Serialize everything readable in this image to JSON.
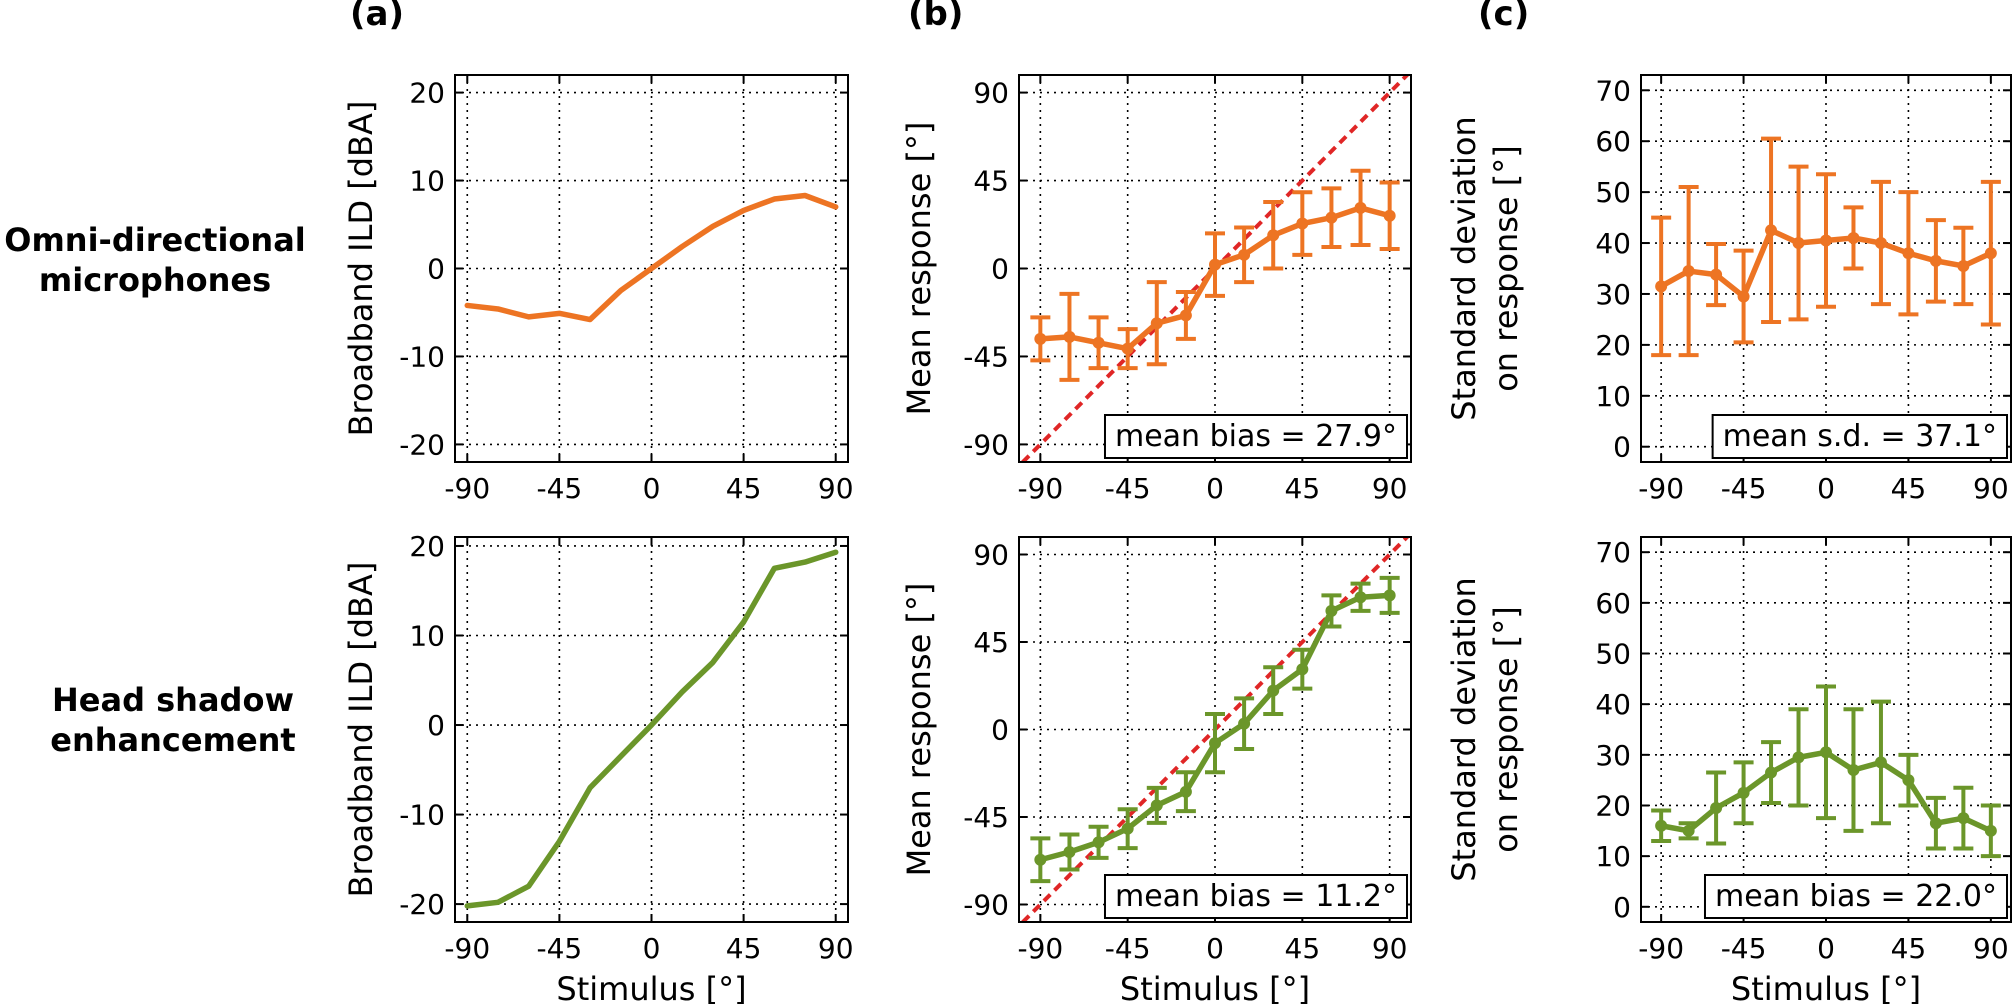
{
  "panel_letters": [
    "(a)",
    "(b)",
    "(c)"
  ],
  "row_labels": [
    [
      "Omni-directional",
      "microphones"
    ],
    [
      "Head shadow",
      "enhancement"
    ]
  ],
  "colors": {
    "orange": "#ed7423",
    "green": "#6b962a",
    "identity": "#e02626"
  },
  "chart_data": [
    {
      "id": "a-top",
      "type": "line",
      "xlabel": "",
      "ylabel": "Broadband ILD [dBA]",
      "xlim": [
        -96,
        96
      ],
      "ylim": [
        -22,
        22
      ],
      "xticks": [
        -90,
        -45,
        0,
        45,
        90
      ],
      "xticklabels": [
        "-90",
        "-45",
        "0",
        "45",
        "90"
      ],
      "yticks": [
        -20,
        -10,
        0,
        10,
        20
      ],
      "yticklabels": [
        "-20",
        "-10",
        "0",
        "10",
        "20"
      ],
      "grid": true,
      "series": [
        {
          "color": "orange",
          "x": [
            -90,
            -75,
            -60,
            -45,
            -30,
            -15,
            0,
            15,
            30,
            45,
            60,
            75,
            90
          ],
          "y": [
            -4.2,
            -4.6,
            -5.5,
            -5.1,
            -5.8,
            -2.5,
            0,
            2.5,
            4.8,
            6.6,
            7.9,
            8.3,
            7.0
          ]
        }
      ]
    },
    {
      "id": "b-top",
      "type": "line",
      "xlabel": "",
      "ylabel": "Mean response [°]",
      "xlim": [
        -101,
        101
      ],
      "ylim": [
        -99,
        99
      ],
      "xticks": [
        -90,
        -45,
        0,
        45,
        90
      ],
      "xticklabels": [
        "-90",
        "-45",
        "0",
        "45",
        "90"
      ],
      "yticks": [
        -90,
        -45,
        0,
        45,
        90
      ],
      "yticklabels": [
        "-90",
        "-45",
        "0",
        "45",
        "90"
      ],
      "grid": true,
      "identity_line": true,
      "annotation": "mean bias = 27.9°",
      "series": [
        {
          "color": "orange",
          "errorbars": true,
          "x": [
            -90,
            -75,
            -60,
            -45,
            -30,
            -15,
            0,
            15,
            30,
            45,
            60,
            75,
            90
          ],
          "y": [
            -36,
            -35,
            -38,
            -41,
            -28,
            -24,
            2,
            7,
            17,
            23,
            26,
            31,
            27
          ],
          "err": [
            11,
            22,
            13,
            10,
            21,
            12,
            16,
            14,
            17,
            16,
            15,
            19,
            17
          ]
        }
      ]
    },
    {
      "id": "c-top",
      "type": "line",
      "xlabel": "",
      "ylabel": "Standard deviation on response [°]",
      "ylabel_lines": [
        "Standard deviation",
        "on response [°]"
      ],
      "xlim": [
        -101,
        101
      ],
      "ylim": [
        -3,
        73
      ],
      "xticks": [
        -90,
        -45,
        0,
        45,
        90
      ],
      "xticklabels": [
        "-90",
        "-45",
        "0",
        "45",
        "90"
      ],
      "yticks": [
        0,
        10,
        20,
        30,
        40,
        50,
        60,
        70
      ],
      "yticklabels": [
        "0",
        "10",
        "20",
        "30",
        "40",
        "50",
        "60",
        "70"
      ],
      "grid": true,
      "annotation": "mean s.d. = 37.1°",
      "series": [
        {
          "color": "orange",
          "errorbars": true,
          "x": [
            -90,
            -75,
            -60,
            -45,
            -30,
            -15,
            0,
            15,
            30,
            45,
            60,
            75,
            90
          ],
          "y": [
            31.5,
            34.5,
            33.8,
            29.5,
            42.5,
            40,
            40.5,
            41,
            40,
            38,
            36.5,
            35.5,
            38
          ],
          "err": [
            13.5,
            16.5,
            6,
            9,
            18,
            15,
            13,
            6,
            12,
            12,
            8,
            7.5,
            14
          ]
        }
      ]
    },
    {
      "id": "a-bottom",
      "type": "line",
      "xlabel": "Stimulus [°]",
      "ylabel": "Broadband ILD [dBA]",
      "xlim": [
        -96,
        96
      ],
      "ylim": [
        -22,
        21
      ],
      "xticks": [
        -90,
        -45,
        0,
        45,
        90
      ],
      "xticklabels": [
        "-90",
        "-45",
        "0",
        "45",
        "90"
      ],
      "yticks": [
        -20,
        -10,
        0,
        10,
        20
      ],
      "yticklabels": [
        "-20",
        "-10",
        "0",
        "10",
        "20"
      ],
      "grid": true,
      "series": [
        {
          "color": "green",
          "x": [
            -90,
            -75,
            -60,
            -45,
            -30,
            -15,
            0,
            15,
            30,
            45,
            60,
            75,
            90
          ],
          "y": [
            -20.2,
            -19.8,
            -18,
            -13,
            -7,
            -3.5,
            0,
            3.7,
            7,
            11.5,
            17.5,
            18.2,
            19.3
          ]
        }
      ]
    },
    {
      "id": "b-bottom",
      "type": "line",
      "xlabel": "Stimulus [°]",
      "ylabel": "Mean response [°]",
      "xlim": [
        -101,
        101
      ],
      "ylim": [
        -99,
        99
      ],
      "xticks": [
        -90,
        -45,
        0,
        45,
        90
      ],
      "xticklabels": [
        "-90",
        "-45",
        "0",
        "45",
        "90"
      ],
      "yticks": [
        -90,
        -45,
        0,
        45,
        90
      ],
      "yticklabels": [
        "-90",
        "-45",
        "0",
        "45",
        "90"
      ],
      "grid": true,
      "identity_line": true,
      "annotation": "mean bias = 11.2°",
      "series": [
        {
          "color": "green",
          "errorbars": true,
          "x": [
            -90,
            -75,
            -60,
            -45,
            -30,
            -15,
            0,
            15,
            30,
            45,
            60,
            75,
            90
          ],
          "y": [
            -67,
            -63,
            -58,
            -51,
            -39,
            -32,
            -7,
            3,
            20,
            31,
            61,
            68,
            69
          ],
          "err": [
            11,
            9,
            8,
            10,
            9,
            10,
            15,
            13,
            12,
            10,
            8,
            7,
            9
          ]
        }
      ]
    },
    {
      "id": "c-bottom",
      "type": "line",
      "xlabel": "Stimulus [°]",
      "ylabel": "Standard deviation on response [°]",
      "ylabel_lines": [
        "Standard deviation",
        "on response [°]"
      ],
      "xlim": [
        -101,
        101
      ],
      "ylim": [
        -3,
        73
      ],
      "xticks": [
        -90,
        -45,
        0,
        45,
        90
      ],
      "xticklabels": [
        "-90",
        "-45",
        "0",
        "45",
        "90"
      ],
      "yticks": [
        0,
        10,
        20,
        30,
        40,
        50,
        60,
        70
      ],
      "yticklabels": [
        "0",
        "10",
        "20",
        "30",
        "40",
        "50",
        "60",
        "70"
      ],
      "grid": true,
      "annotation": "mean bias = 22.0°",
      "series": [
        {
          "color": "green",
          "errorbars": true,
          "x": [
            -90,
            -75,
            -60,
            -45,
            -30,
            -15,
            0,
            15,
            30,
            45,
            60,
            75,
            90
          ],
          "y": [
            16,
            15,
            19.5,
            22.5,
            26.5,
            29.5,
            30.5,
            27,
            28.5,
            25,
            16.5,
            17.5,
            15
          ],
          "err": [
            3,
            1.5,
            7,
            6,
            6,
            9.5,
            13,
            12,
            12,
            5,
            5,
            6,
            5
          ]
        }
      ]
    }
  ]
}
